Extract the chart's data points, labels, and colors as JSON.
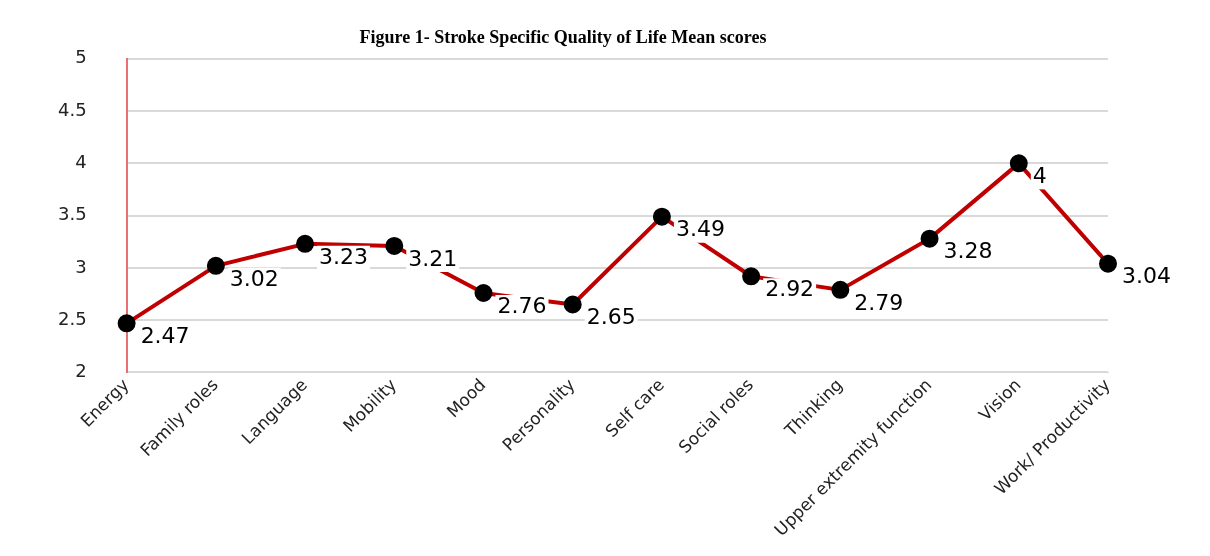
{
  "chart_data": {
    "type": "line",
    "title": "Figure 1- Stroke Specific Quality of Life Mean scores",
    "categories": [
      "Energy",
      "Family roles",
      "Language",
      "Mobility",
      "Mood",
      "Personality",
      "Self care",
      "Social roles",
      "Thinking",
      "Upper extremity function",
      "Vision",
      "Work/ Productivity"
    ],
    "series": [
      {
        "color": "#c00000",
        "values": [
          2.47,
          3.02,
          3.23,
          3.21,
          2.76,
          2.65,
          3.49,
          2.92,
          2.79,
          3.28,
          4,
          3.04
        ]
      }
    ],
    "ylim": [
      2,
      5
    ],
    "yticks": [
      2,
      2.5,
      3,
      3.5,
      4,
      4.5,
      5
    ],
    "grid": "y",
    "marker": "circle",
    "line_style": "solid",
    "data_labels": true,
    "legend": false
  }
}
